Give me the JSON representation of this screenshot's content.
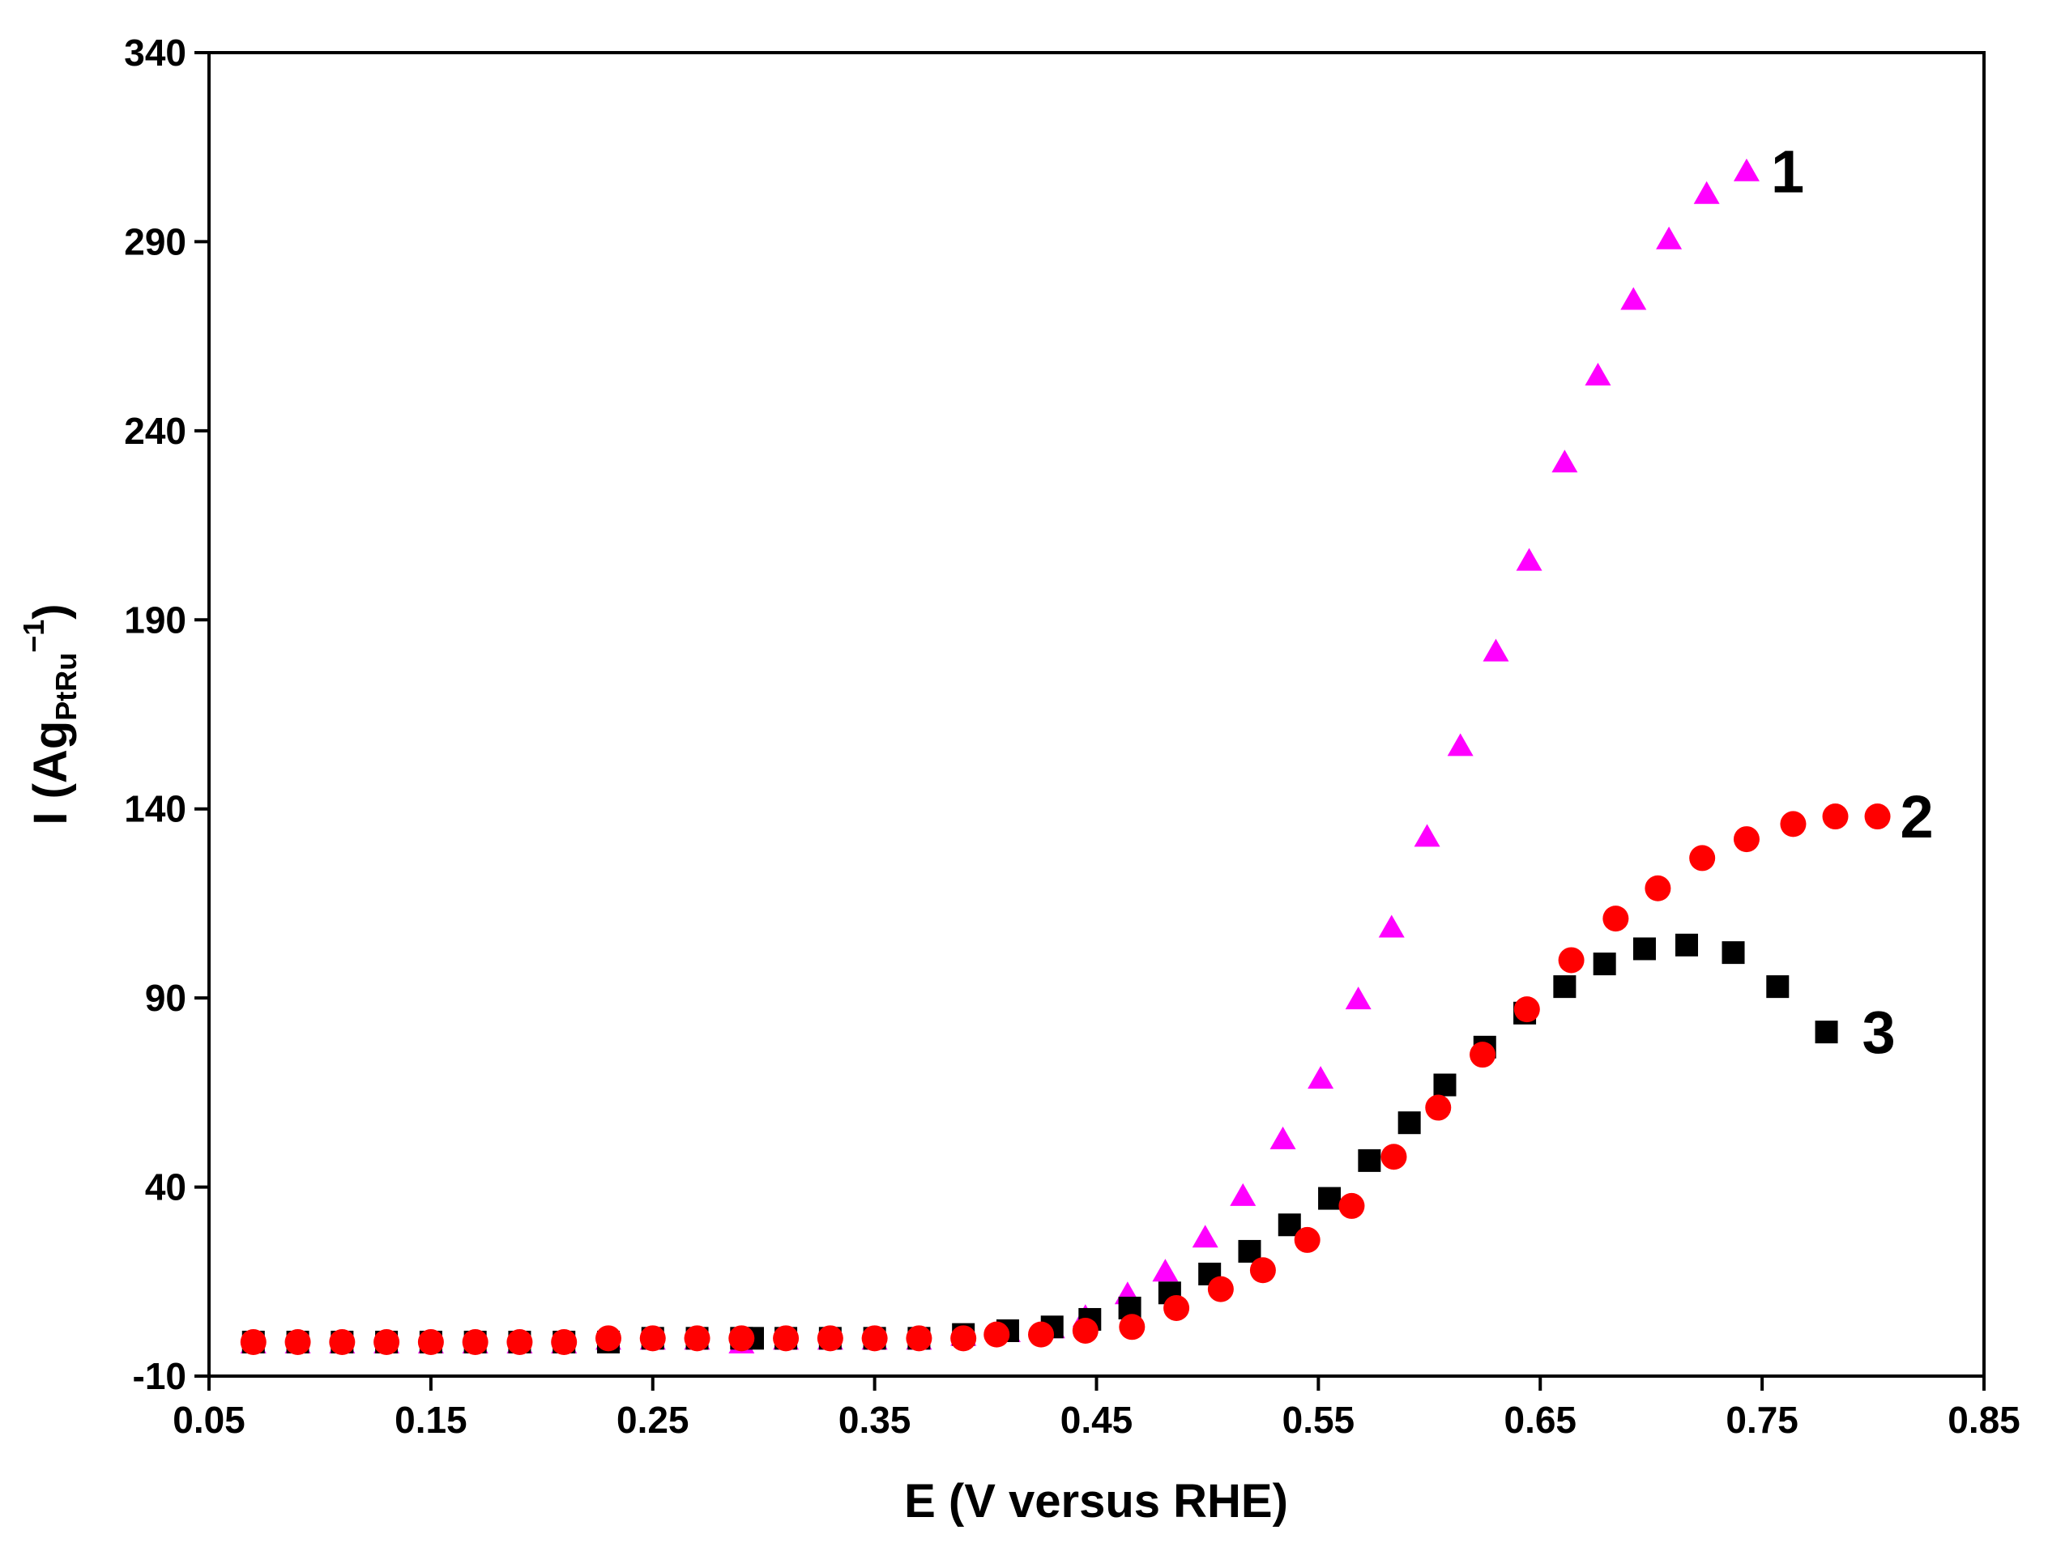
{
  "chart_data": {
    "type": "scatter",
    "title": "",
    "xlabel": "E (V versus RHE)",
    "ylabel": {
      "prefix": "I (Ag",
      "subscript": "PtRu",
      "superscript": "−1",
      "suffix": ")"
    },
    "xlim": [
      0.05,
      0.85
    ],
    "ylim": [
      -10,
      340
    ],
    "xticks": [
      0.05,
      0.15,
      0.25,
      0.35,
      0.45,
      0.55,
      0.65,
      0.75,
      0.85
    ],
    "xtick_labels": [
      "0.05",
      "0.15",
      "0.25",
      "0.35",
      "0.45",
      "0.55",
      "0.65",
      "0.75",
      "0.85"
    ],
    "yticks": [
      -10,
      40,
      90,
      140,
      190,
      240,
      290,
      340
    ],
    "ytick_labels": [
      "-10",
      "40",
      "90",
      "140",
      "190",
      "240",
      "290",
      "340"
    ],
    "grid": false,
    "series": [
      {
        "name": "1",
        "marker": "triangle",
        "color": "#FF00FF",
        "x": [
          0.07,
          0.09,
          0.11,
          0.13,
          0.15,
          0.17,
          0.19,
          0.21,
          0.23,
          0.25,
          0.27,
          0.29,
          0.31,
          0.33,
          0.35,
          0.37,
          0.39,
          0.41,
          0.43,
          0.445,
          0.464,
          0.481,
          0.499,
          0.516,
          0.534,
          0.551,
          0.568,
          0.583,
          0.599,
          0.614,
          0.63,
          0.645,
          0.661,
          0.676,
          0.692,
          0.708,
          0.725,
          0.743
        ],
        "y": [
          -1,
          -1,
          -1,
          -1,
          -1,
          -1,
          -1,
          -1,
          0,
          0,
          0,
          -1,
          0,
          0,
          0,
          0,
          1,
          2,
          3,
          6,
          12,
          18,
          27,
          38,
          53,
          69,
          90,
          109,
          133,
          157,
          182,
          206,
          232,
          255,
          275,
          291,
          303,
          309
        ]
      },
      {
        "name": "2",
        "marker": "circle",
        "color": "#FF0000",
        "x": [
          0.07,
          0.09,
          0.11,
          0.13,
          0.15,
          0.17,
          0.19,
          0.21,
          0.23,
          0.25,
          0.27,
          0.29,
          0.31,
          0.33,
          0.35,
          0.37,
          0.39,
          0.405,
          0.425,
          0.445,
          0.466,
          0.486,
          0.506,
          0.525,
          0.545,
          0.565,
          0.584,
          0.604,
          0.624,
          0.644,
          0.664,
          0.684,
          0.703,
          0.723,
          0.743,
          0.764,
          0.783,
          0.802
        ],
        "y": [
          -1,
          -1,
          -1,
          -1,
          -1,
          -1,
          -1,
          -1,
          0,
          0,
          0,
          0,
          0,
          0,
          0,
          0,
          0,
          1,
          1,
          2,
          3,
          8,
          13,
          18,
          26,
          35,
          48,
          61,
          75,
          87,
          100,
          111,
          119,
          127,
          132,
          136,
          138,
          138
        ]
      },
      {
        "name": "3",
        "marker": "square",
        "color": "#000000",
        "x": [
          0.07,
          0.09,
          0.11,
          0.13,
          0.15,
          0.17,
          0.19,
          0.21,
          0.23,
          0.25,
          0.27,
          0.29,
          0.295,
          0.31,
          0.33,
          0.35,
          0.37,
          0.39,
          0.41,
          0.43,
          0.447,
          0.465,
          0.483,
          0.501,
          0.519,
          0.537,
          0.555,
          0.573,
          0.591,
          0.607,
          0.625,
          0.643,
          0.661,
          0.679,
          0.697,
          0.716,
          0.737,
          0.757,
          0.779
        ],
        "y": [
          -1,
          -1,
          -1,
          -1,
          -1,
          -1,
          -1,
          -1,
          -1,
          0,
          0,
          0,
          0,
          0,
          0,
          0,
          0,
          1,
          2,
          3,
          5,
          8,
          12,
          17,
          23,
          30,
          37,
          47,
          57,
          67,
          77,
          86,
          93,
          99,
          103,
          104,
          102,
          93,
          81
        ]
      }
    ]
  }
}
